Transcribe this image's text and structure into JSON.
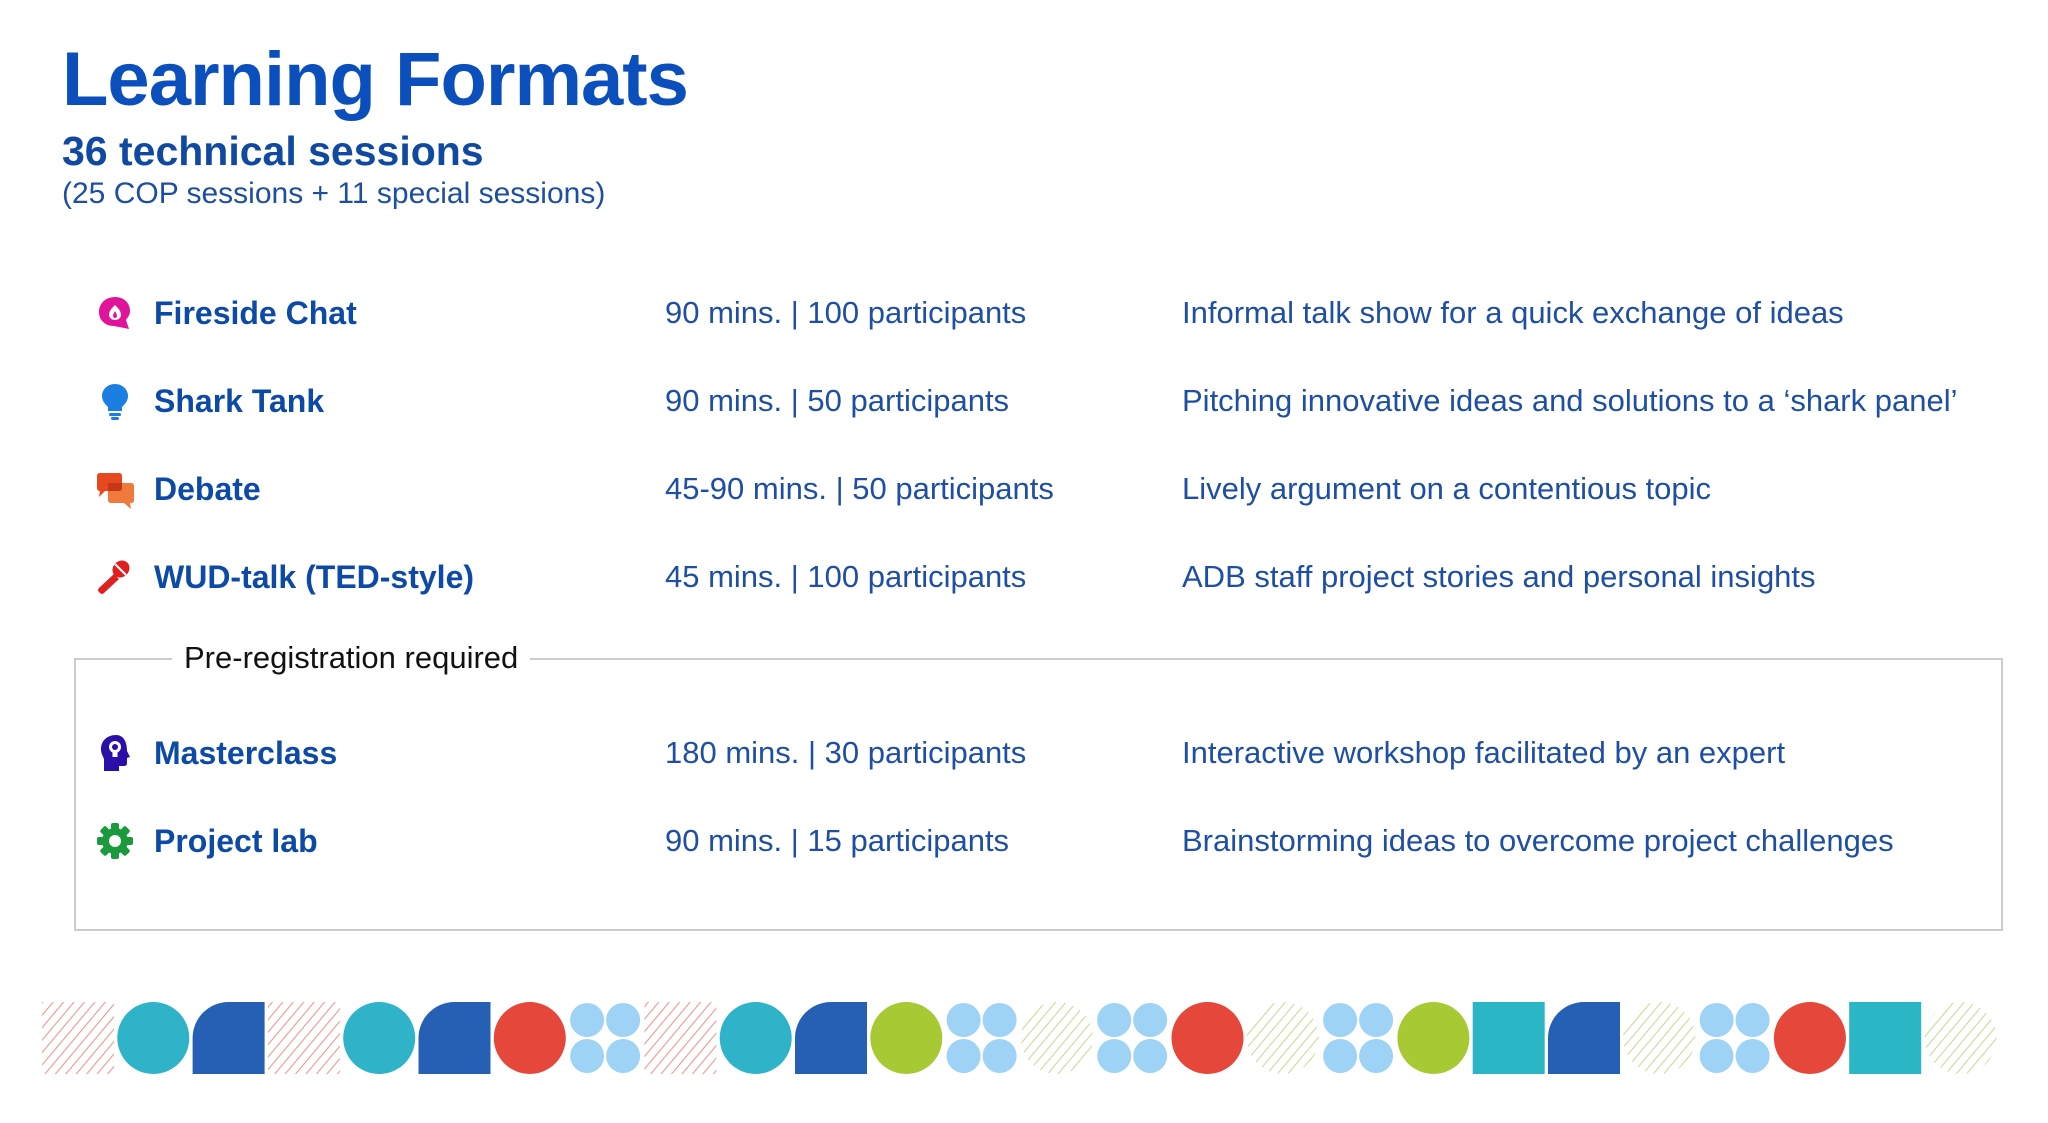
{
  "header": {
    "title": "Learning Formats",
    "subtitle": "36 technical sessions",
    "note": "(25 COP sessions + 11 special sessions)"
  },
  "formats": [
    {
      "icon": "chat-bubble-icon",
      "name": "Fireside Chat",
      "meta": "90 mins. | 100 participants",
      "desc": "Informal talk show for a quick exchange of ideas",
      "color": "#e0139b"
    },
    {
      "icon": "lightbulb-icon",
      "name": "Shark Tank",
      "meta": "90 mins. | 50 participants",
      "desc": "Pitching innovative ideas and solutions to a ‘shark panel’",
      "color": "#1a7fe0"
    },
    {
      "icon": "speech-bubbles-icon",
      "name": "Debate",
      "meta": "45-90 mins. | 50 participants",
      "desc": "Lively argument on a contentious topic",
      "color": "#e8481e"
    },
    {
      "icon": "microphone-icon",
      "name": "WUD-talk  (TED-style)",
      "meta": "45 mins. | 100 participants",
      "desc": "ADB staff project stories and personal insights",
      "color": "#e02020"
    }
  ],
  "prereg": {
    "label": "Pre-registration required",
    "formats": [
      {
        "icon": "head-bulb-icon",
        "name": "Masterclass",
        "meta": "180 mins. | 30 participants",
        "desc": "Interactive workshop facilitated by an expert",
        "color": "#2a0fa8"
      },
      {
        "icon": "gear-icon",
        "name": "Project lab",
        "meta": "90 mins. | 15 participants",
        "desc": "Brainstorming ideas to overcome project challenges",
        "color": "#1a9a3c"
      }
    ]
  },
  "decor": {
    "colors": {
      "teal": "#2fb3c8",
      "blue": "#2560b4",
      "red": "#e5473a",
      "lightblue": "#9fd3f5",
      "lime": "#a6c934",
      "turquoise": "#2bb6c5",
      "stripeRed": "#e89a8e",
      "stripeGreen": "#cbd89a"
    },
    "shapes": [
      "stripes-red",
      "circle-teal",
      "quarter-blue",
      "stripes-red",
      "circle-teal",
      "quarter-blue",
      "circle-red",
      "quad-lightblue",
      "stripes-red",
      "circle-teal",
      "quarter-blue",
      "circle-lime",
      "quad-lightblue",
      "stripes-green",
      "quad-lightblue",
      "circle-red",
      "stripes-green",
      "quad-lightblue",
      "circle-lime",
      "square-turquoise",
      "quarter-blue",
      "stripes-green",
      "quad-lightblue",
      "circle-red",
      "square-turquoise",
      "stripes-green"
    ]
  }
}
